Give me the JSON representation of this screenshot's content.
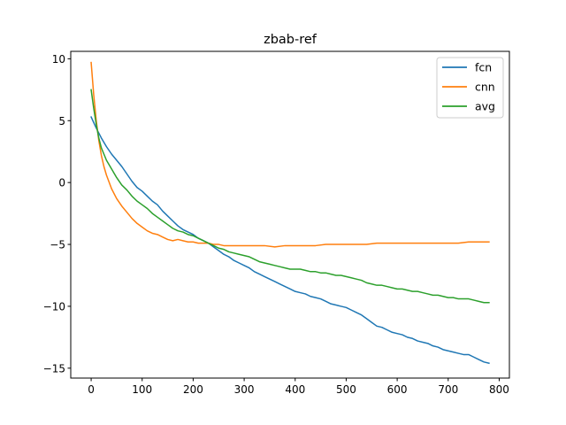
{
  "chart_data": {
    "type": "line",
    "title": "zbab-ref",
    "xlabel": "",
    "ylabel": "",
    "xlim": [
      -40,
      820
    ],
    "ylim": [
      -15.8,
      10.6
    ],
    "xticks": [
      0,
      100,
      200,
      300,
      400,
      500,
      600,
      700,
      800
    ],
    "yticks": [
      10,
      5,
      0,
      -5,
      -10,
      -15
    ],
    "grid": false,
    "legend_position": "top-right",
    "series": [
      {
        "name": "fcn",
        "color": "#1f77b4",
        "x": [
          0,
          10,
          20,
          30,
          40,
          50,
          60,
          70,
          80,
          90,
          100,
          110,
          120,
          130,
          140,
          150,
          160,
          170,
          180,
          190,
          200,
          210,
          220,
          230,
          240,
          250,
          260,
          270,
          280,
          290,
          300,
          310,
          320,
          330,
          340,
          350,
          360,
          370,
          380,
          390,
          400,
          410,
          420,
          430,
          440,
          450,
          460,
          470,
          480,
          490,
          500,
          510,
          520,
          530,
          540,
          550,
          560,
          570,
          580,
          590,
          600,
          610,
          620,
          630,
          640,
          650,
          660,
          670,
          680,
          690,
          700,
          710,
          720,
          730,
          740,
          750,
          760,
          770,
          780
        ],
        "y": [
          5.3,
          4.4,
          3.6,
          2.9,
          2.3,
          1.8,
          1.3,
          0.7,
          0.1,
          -0.4,
          -0.7,
          -1.1,
          -1.5,
          -1.8,
          -2.3,
          -2.7,
          -3.1,
          -3.5,
          -3.8,
          -4.0,
          -4.2,
          -4.5,
          -4.7,
          -4.9,
          -5.2,
          -5.5,
          -5.8,
          -6.0,
          -6.3,
          -6.5,
          -6.7,
          -6.9,
          -7.2,
          -7.4,
          -7.6,
          -7.8,
          -8.0,
          -8.2,
          -8.4,
          -8.6,
          -8.8,
          -8.9,
          -9.0,
          -9.2,
          -9.3,
          -9.4,
          -9.6,
          -9.8,
          -9.9,
          -10.0,
          -10.1,
          -10.3,
          -10.5,
          -10.7,
          -11.0,
          -11.3,
          -11.6,
          -11.7,
          -11.9,
          -12.1,
          -12.2,
          -12.3,
          -12.5,
          -12.6,
          -12.8,
          -12.9,
          -13.0,
          -13.2,
          -13.3,
          -13.5,
          -13.6,
          -13.7,
          -13.8,
          -13.9,
          -13.9,
          -14.1,
          -14.3,
          -14.5,
          -14.6
        ]
      },
      {
        "name": "cnn",
        "color": "#ff7f0e",
        "x": [
          0,
          5,
          10,
          15,
          20,
          25,
          30,
          40,
          50,
          60,
          70,
          80,
          90,
          100,
          110,
          120,
          130,
          140,
          150,
          160,
          170,
          180,
          190,
          200,
          210,
          220,
          230,
          240,
          250,
          260,
          280,
          300,
          320,
          340,
          360,
          380,
          400,
          420,
          440,
          460,
          480,
          500,
          520,
          540,
          560,
          580,
          600,
          620,
          640,
          660,
          680,
          700,
          720,
          740,
          760,
          780
        ],
        "y": [
          9.7,
          7.1,
          5.0,
          3.4,
          2.2,
          1.3,
          0.6,
          -0.5,
          -1.3,
          -1.9,
          -2.4,
          -2.9,
          -3.3,
          -3.6,
          -3.9,
          -4.1,
          -4.2,
          -4.4,
          -4.6,
          -4.7,
          -4.6,
          -4.7,
          -4.8,
          -4.8,
          -4.9,
          -4.9,
          -4.9,
          -5.0,
          -5.0,
          -5.1,
          -5.1,
          -5.1,
          -5.1,
          -5.1,
          -5.2,
          -5.1,
          -5.1,
          -5.1,
          -5.1,
          -5.0,
          -5.0,
          -5.0,
          -5.0,
          -5.0,
          -4.9,
          -4.9,
          -4.9,
          -4.9,
          -4.9,
          -4.9,
          -4.9,
          -4.9,
          -4.9,
          -4.8,
          -4.8,
          -4.8
        ]
      },
      {
        "name": "avg",
        "color": "#2ca02c",
        "x": [
          0,
          5,
          10,
          15,
          20,
          30,
          40,
          50,
          60,
          70,
          80,
          90,
          100,
          110,
          120,
          130,
          140,
          150,
          160,
          170,
          180,
          190,
          200,
          210,
          220,
          230,
          240,
          250,
          260,
          270,
          280,
          290,
          300,
          310,
          320,
          330,
          340,
          350,
          360,
          370,
          380,
          390,
          400,
          410,
          420,
          430,
          440,
          450,
          460,
          470,
          480,
          490,
          500,
          510,
          520,
          530,
          540,
          550,
          560,
          570,
          580,
          590,
          600,
          610,
          620,
          630,
          640,
          650,
          660,
          670,
          680,
          690,
          700,
          710,
          720,
          730,
          740,
          750,
          760,
          770,
          780
        ],
        "y": [
          7.5,
          6.0,
          4.7,
          3.6,
          2.8,
          1.8,
          1.1,
          0.4,
          -0.2,
          -0.6,
          -1.1,
          -1.5,
          -1.8,
          -2.1,
          -2.5,
          -2.8,
          -3.1,
          -3.4,
          -3.7,
          -3.9,
          -4.0,
          -4.2,
          -4.3,
          -4.5,
          -4.7,
          -4.9,
          -5.1,
          -5.3,
          -5.4,
          -5.6,
          -5.7,
          -5.8,
          -5.9,
          -6.0,
          -6.2,
          -6.4,
          -6.5,
          -6.6,
          -6.7,
          -6.8,
          -6.9,
          -7.0,
          -7.0,
          -7.0,
          -7.1,
          -7.2,
          -7.2,
          -7.3,
          -7.3,
          -7.4,
          -7.5,
          -7.5,
          -7.6,
          -7.7,
          -7.8,
          -7.9,
          -8.1,
          -8.2,
          -8.3,
          -8.3,
          -8.4,
          -8.5,
          -8.6,
          -8.6,
          -8.7,
          -8.8,
          -8.8,
          -8.9,
          -9.0,
          -9.1,
          -9.1,
          -9.2,
          -9.3,
          -9.3,
          -9.4,
          -9.4,
          -9.4,
          -9.5,
          -9.6,
          -9.7,
          -9.7
        ]
      }
    ]
  }
}
